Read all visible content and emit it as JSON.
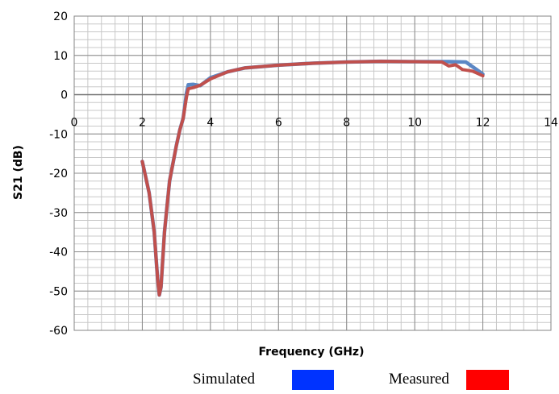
{
  "chart_data": {
    "type": "line",
    "title": "",
    "xlabel": "Frequency (GHz)",
    "ylabel": "S21 (dB)",
    "xlim": [
      0,
      14
    ],
    "ylim": [
      -60,
      20
    ],
    "x_ticks": [
      0,
      2,
      4,
      6,
      8,
      10,
      12,
      14
    ],
    "y_ticks": [
      20,
      10,
      0,
      -10,
      -20,
      -30,
      -40,
      -50,
      -60
    ],
    "grid": "major and minor",
    "legend_position": "bottom",
    "series": [
      {
        "name": "Simulated",
        "color": "#5b87c5",
        "legend_color": "#0033ff",
        "points": [
          [
            2,
            -17
          ],
          [
            2.2,
            -25
          ],
          [
            2.35,
            -35
          ],
          [
            2.45,
            -47
          ],
          [
            2.5,
            -51
          ],
          [
            2.55,
            -49
          ],
          [
            2.65,
            -35
          ],
          [
            2.8,
            -22
          ],
          [
            3.0,
            -13
          ],
          [
            3.1,
            -9
          ],
          [
            3.2,
            -6
          ],
          [
            3.3,
            0.5
          ],
          [
            3.35,
            2.5
          ],
          [
            3.5,
            2.6
          ],
          [
            3.7,
            2.3
          ],
          [
            4.0,
            4.3
          ],
          [
            4.5,
            5.8
          ],
          [
            5,
            6.8
          ],
          [
            6,
            7.5
          ],
          [
            7,
            8.0
          ],
          [
            8,
            8.3
          ],
          [
            9,
            8.5
          ],
          [
            10,
            8.4
          ],
          [
            11,
            8.4
          ],
          [
            11.5,
            8.3
          ],
          [
            11.8,
            6.5
          ],
          [
            12,
            5.2
          ]
        ]
      },
      {
        "name": "Measured",
        "color": "#c0504d",
        "legend_color": "#ff0000",
        "points": [
          [
            2,
            -17
          ],
          [
            2.2,
            -25
          ],
          [
            2.35,
            -35
          ],
          [
            2.45,
            -47
          ],
          [
            2.5,
            -51
          ],
          [
            2.55,
            -49
          ],
          [
            2.65,
            -35
          ],
          [
            2.8,
            -22
          ],
          [
            3.0,
            -13
          ],
          [
            3.1,
            -9
          ],
          [
            3.2,
            -6
          ],
          [
            3.3,
            -0.5
          ],
          [
            3.35,
            1.5
          ],
          [
            3.5,
            1.8
          ],
          [
            3.7,
            2.4
          ],
          [
            4.0,
            4.0
          ],
          [
            4.5,
            5.8
          ],
          [
            5,
            6.8
          ],
          [
            6,
            7.5
          ],
          [
            7,
            8.0
          ],
          [
            8,
            8.3
          ],
          [
            9,
            8.5
          ],
          [
            10,
            8.4
          ],
          [
            10.8,
            8.3
          ],
          [
            11.0,
            7.3
          ],
          [
            11.2,
            7.6
          ],
          [
            11.4,
            6.4
          ],
          [
            11.7,
            6.0
          ],
          [
            12,
            4.8
          ]
        ]
      }
    ]
  }
}
